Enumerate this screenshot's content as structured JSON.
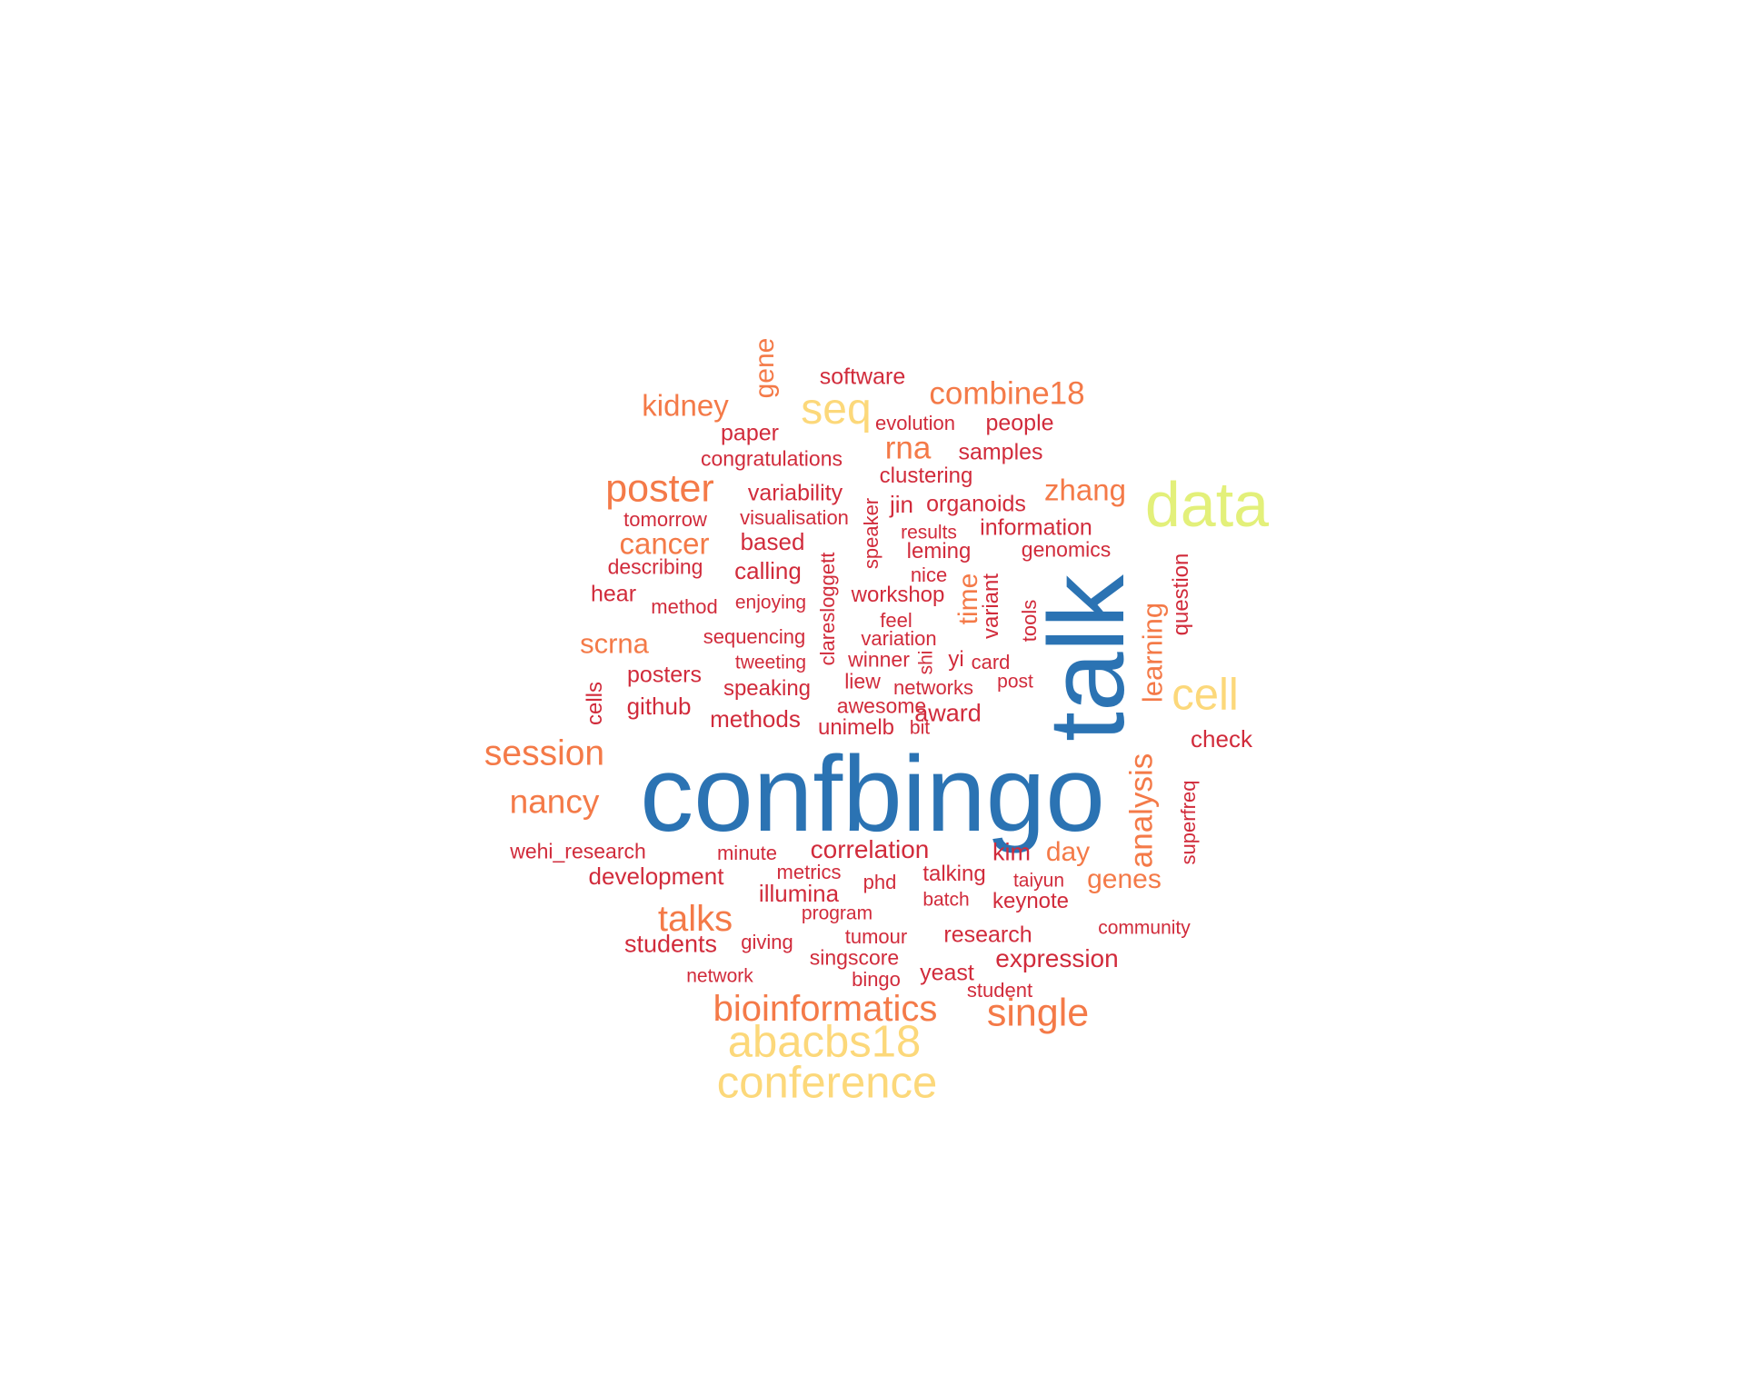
{
  "palette": {
    "blue": "#2b73b3",
    "red": "#d12b3b",
    "orange": "#f47a48",
    "yellow": "#fcd87a",
    "lime": "#e3f07a"
  },
  "words": [
    {
      "text": "confbingo",
      "color": "blue"
    },
    {
      "text": "talk",
      "color": "blue"
    },
    {
      "text": "data",
      "color": "lime"
    },
    {
      "text": "cell",
      "color": "yellow"
    },
    {
      "text": "seq",
      "color": "yellow"
    },
    {
      "text": "abacbs18",
      "color": "yellow"
    },
    {
      "text": "conference",
      "color": "yellow"
    },
    {
      "text": "poster",
      "color": "orange"
    },
    {
      "text": "session",
      "color": "orange"
    },
    {
      "text": "nancy",
      "color": "orange"
    },
    {
      "text": "bioinformatics",
      "color": "orange"
    },
    {
      "text": "single",
      "color": "orange"
    },
    {
      "text": "talks",
      "color": "orange"
    },
    {
      "text": "analysis",
      "color": "orange"
    },
    {
      "text": "gene",
      "color": "orange"
    },
    {
      "text": "kidney",
      "color": "orange"
    },
    {
      "text": "combine18",
      "color": "orange"
    },
    {
      "text": "rna",
      "color": "orange"
    },
    {
      "text": "zhang",
      "color": "orange"
    },
    {
      "text": "cancer",
      "color": "orange"
    },
    {
      "text": "scrna",
      "color": "orange"
    },
    {
      "text": "learning",
      "color": "orange"
    },
    {
      "text": "time",
      "color": "orange"
    },
    {
      "text": "day",
      "color": "orange"
    },
    {
      "text": "genes",
      "color": "orange"
    },
    {
      "text": "software",
      "color": "red"
    },
    {
      "text": "paper",
      "color": "red"
    },
    {
      "text": "evolution",
      "color": "red"
    },
    {
      "text": "people",
      "color": "red"
    },
    {
      "text": "congratulations",
      "color": "red"
    },
    {
      "text": "samples",
      "color": "red"
    },
    {
      "text": "clustering",
      "color": "red"
    },
    {
      "text": "variability",
      "color": "red"
    },
    {
      "text": "jin",
      "color": "red"
    },
    {
      "text": "organoids",
      "color": "red"
    },
    {
      "text": "tomorrow",
      "color": "red"
    },
    {
      "text": "visualisation",
      "color": "red"
    },
    {
      "text": "speaker",
      "color": "red"
    },
    {
      "text": "results",
      "color": "red"
    },
    {
      "text": "information",
      "color": "red"
    },
    {
      "text": "based",
      "color": "red"
    },
    {
      "text": "leming",
      "color": "red"
    },
    {
      "text": "genomics",
      "color": "red"
    },
    {
      "text": "describing",
      "color": "red"
    },
    {
      "text": "calling",
      "color": "red"
    },
    {
      "text": "claresloggett",
      "color": "red"
    },
    {
      "text": "nice",
      "color": "red"
    },
    {
      "text": "question",
      "color": "red"
    },
    {
      "text": "hear",
      "color": "red"
    },
    {
      "text": "workshop",
      "color": "red"
    },
    {
      "text": "variant",
      "color": "red"
    },
    {
      "text": "method",
      "color": "red"
    },
    {
      "text": "enjoying",
      "color": "red"
    },
    {
      "text": "feel",
      "color": "red"
    },
    {
      "text": "tools",
      "color": "red"
    },
    {
      "text": "sequencing",
      "color": "red"
    },
    {
      "text": "variation",
      "color": "red"
    },
    {
      "text": "tweeting",
      "color": "red"
    },
    {
      "text": "winner",
      "color": "red"
    },
    {
      "text": "shi",
      "color": "red"
    },
    {
      "text": "yi",
      "color": "red"
    },
    {
      "text": "card",
      "color": "red"
    },
    {
      "text": "posters",
      "color": "red"
    },
    {
      "text": "liew",
      "color": "red"
    },
    {
      "text": "speaking",
      "color": "red"
    },
    {
      "text": "networks",
      "color": "red"
    },
    {
      "text": "post",
      "color": "red"
    },
    {
      "text": "cells",
      "color": "red"
    },
    {
      "text": "github",
      "color": "red"
    },
    {
      "text": "awesome",
      "color": "red"
    },
    {
      "text": "methods",
      "color": "red"
    },
    {
      "text": "award",
      "color": "red"
    },
    {
      "text": "unimelb",
      "color": "red"
    },
    {
      "text": "bit",
      "color": "red"
    },
    {
      "text": "check",
      "color": "red"
    },
    {
      "text": "superfreq",
      "color": "red"
    },
    {
      "text": "wehi_research",
      "color": "red"
    },
    {
      "text": "minute",
      "color": "red"
    },
    {
      "text": "correlation",
      "color": "red"
    },
    {
      "text": "kim",
      "color": "red"
    },
    {
      "text": "development",
      "color": "red"
    },
    {
      "text": "metrics",
      "color": "red"
    },
    {
      "text": "talking",
      "color": "red"
    },
    {
      "text": "illumina",
      "color": "red"
    },
    {
      "text": "phd",
      "color": "red"
    },
    {
      "text": "taiyun",
      "color": "red"
    },
    {
      "text": "batch",
      "color": "red"
    },
    {
      "text": "keynote",
      "color": "red"
    },
    {
      "text": "program",
      "color": "red"
    },
    {
      "text": "community",
      "color": "red"
    },
    {
      "text": "students",
      "color": "red"
    },
    {
      "text": "giving",
      "color": "red"
    },
    {
      "text": "tumour",
      "color": "red"
    },
    {
      "text": "research",
      "color": "red"
    },
    {
      "text": "singscore",
      "color": "red"
    },
    {
      "text": "expression",
      "color": "red"
    },
    {
      "text": "network",
      "color": "red"
    },
    {
      "text": "bingo",
      "color": "red"
    },
    {
      "text": "yeast",
      "color": "red"
    },
    {
      "text": "student",
      "color": "red"
    }
  ]
}
